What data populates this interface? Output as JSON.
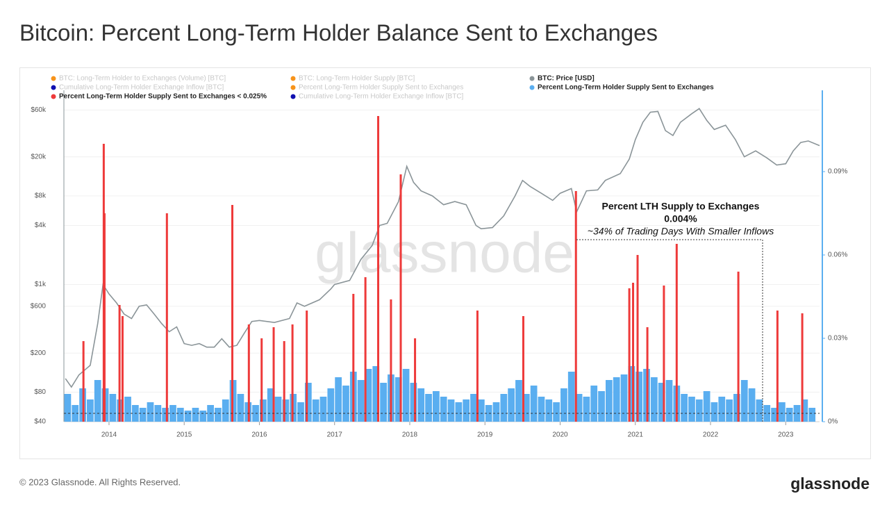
{
  "chart_data": {
    "type": "bar-line",
    "title": "Bitcoin: Percent Long-Term Holder Balance Sent to Exchanges",
    "watermark": "glassnode",
    "footer": "© 2023 Glassnode. All Rights Reserved.",
    "logo": "glassnode",
    "xlim": [
      2013.4,
      2023.45
    ],
    "xticks": [
      2014,
      2015,
      2016,
      2017,
      2018,
      2019,
      2020,
      2021,
      2022,
      2023
    ],
    "ylim": [
      40,
      100000
    ],
    "ylog": true,
    "yticks": [
      {
        "value": 40,
        "label": "$40"
      },
      {
        "value": 80,
        "label": "$80"
      },
      {
        "value": 200,
        "label": "$200"
      },
      {
        "value": 600,
        "label": "$600"
      },
      {
        "value": 1000,
        "label": "$1k"
      },
      {
        "value": 4000,
        "label": "$4k"
      },
      {
        "value": 8000,
        "label": "$8k"
      },
      {
        "value": 20000,
        "label": "$20k"
      },
      {
        "value": 60000,
        "label": "$60k"
      }
    ],
    "y2lim": [
      0,
      0.12
    ],
    "y2ticks": [
      {
        "value": 0,
        "label": "0%"
      },
      {
        "value": 0.03,
        "label": "0.03%"
      },
      {
        "value": 0.06,
        "label": "0.06%"
      },
      {
        "value": 0.09,
        "label": "0.09%"
      }
    ],
    "grid": true,
    "annotation": {
      "title": "Percent LTH Supply to Exchanges",
      "value": "0.004%",
      "note": "~34% of Trading Days With Smaller Inflows"
    },
    "other_legend_entries": [
      {
        "name": "BTC: Long-Term Holder to Exchanges (Volume) [BTC]",
        "color": "#f7931a"
      },
      {
        "name": "BTC: Long-Term Holder Supply [BTC]",
        "color": "#f7931a"
      },
      {
        "name": "Cumulative Long-Term Holder Exchange Inflow [BTC]",
        "color": "#1010b0"
      },
      {
        "name": "Percent Long-Term Holder Supply Sent to Exchanges",
        "color": "#f7931a"
      },
      {
        "name": "Cumulative Long-Term Holder Exchange Inflow [BTC]",
        "color": "#1010b0"
      }
    ],
    "series": [
      {
        "name": "Percent Long-Term Holder Supply Sent to Exchanges",
        "color": "#5aaef0",
        "kind": "bar",
        "axis": "y2",
        "x": [
          2013.45,
          2013.55,
          2013.65,
          2013.75,
          2013.85,
          2013.95,
          2014.05,
          2014.15,
          2014.25,
          2014.35,
          2014.45,
          2014.55,
          2014.65,
          2014.75,
          2014.85,
          2014.95,
          2015.05,
          2015.15,
          2015.25,
          2015.35,
          2015.45,
          2015.55,
          2015.65,
          2015.75,
          2015.85,
          2015.95,
          2016.05,
          2016.15,
          2016.25,
          2016.35,
          2016.45,
          2016.55,
          2016.65,
          2016.75,
          2016.85,
          2016.95,
          2017.05,
          2017.15,
          2017.25,
          2017.35,
          2017.45,
          2017.55,
          2017.65,
          2017.75,
          2017.85,
          2017.95,
          2018.05,
          2018.15,
          2018.25,
          2018.35,
          2018.45,
          2018.55,
          2018.65,
          2018.75,
          2018.85,
          2018.95,
          2019.05,
          2019.15,
          2019.25,
          2019.35,
          2019.45,
          2019.55,
          2019.65,
          2019.75,
          2019.85,
          2019.95,
          2020.05,
          2020.15,
          2020.25,
          2020.35,
          2020.45,
          2020.55,
          2020.65,
          2020.75,
          2020.85,
          2020.95,
          2021.05,
          2021.15,
          2021.25,
          2021.35,
          2021.45,
          2021.55,
          2021.65,
          2021.75,
          2021.85,
          2021.95,
          2022.05,
          2022.15,
          2022.25,
          2022.35,
          2022.45,
          2022.55,
          2022.65,
          2022.75,
          2022.85,
          2022.95,
          2023.05,
          2023.15,
          2023.25,
          2023.35
        ],
        "values": [
          0.01,
          0.006,
          0.012,
          0.008,
          0.015,
          0.012,
          0.01,
          0.008,
          0.009,
          0.006,
          0.005,
          0.007,
          0.006,
          0.005,
          0.006,
          0.005,
          0.004,
          0.005,
          0.004,
          0.006,
          0.005,
          0.008,
          0.015,
          0.01,
          0.007,
          0.006,
          0.008,
          0.012,
          0.009,
          0.008,
          0.01,
          0.007,
          0.014,
          0.008,
          0.009,
          0.012,
          0.016,
          0.013,
          0.018,
          0.015,
          0.019,
          0.02,
          0.014,
          0.017,
          0.016,
          0.019,
          0.014,
          0.012,
          0.01,
          0.011,
          0.009,
          0.008,
          0.007,
          0.008,
          0.01,
          0.008,
          0.006,
          0.007,
          0.01,
          0.012,
          0.015,
          0.01,
          0.013,
          0.009,
          0.008,
          0.007,
          0.012,
          0.018,
          0.01,
          0.009,
          0.013,
          0.011,
          0.015,
          0.016,
          0.017,
          0.02,
          0.018,
          0.019,
          0.016,
          0.014,
          0.015,
          0.013,
          0.01,
          0.009,
          0.008,
          0.011,
          0.007,
          0.009,
          0.008,
          0.01,
          0.015,
          0.012,
          0.008,
          0.006,
          0.005,
          0.007,
          0.005,
          0.006,
          0.008,
          0.005
        ]
      },
      {
        "name": "Percent Long-Term Holder Supply Sent to Exchanges < 0.025%",
        "color": "#ee3a3a",
        "kind": "spike",
        "axis": "y2",
        "x": [
          2013.66,
          2013.93,
          2013.94,
          2014.14,
          2014.18,
          2014.77,
          2015.64,
          2015.86,
          2016.03,
          2016.19,
          2016.33,
          2016.44,
          2016.63,
          2017.25,
          2017.41,
          2017.58,
          2017.75,
          2017.88,
          2018.07,
          2018.9,
          2019.51,
          2020.21,
          2020.92,
          2020.97,
          2021.03,
          2021.16,
          2021.38,
          2021.55,
          2022.37,
          2022.89,
          2023.22
        ],
        "values": [
          0.029,
          0.1,
          0.075,
          0.042,
          0.038,
          0.075,
          0.078,
          0.035,
          0.03,
          0.034,
          0.029,
          0.035,
          0.04,
          0.046,
          0.052,
          0.11,
          0.044,
          0.089,
          0.03,
          0.04,
          0.038,
          0.083,
          0.048,
          0.05,
          0.06,
          0.034,
          0.049,
          0.064,
          0.054,
          0.04,
          0.039
        ]
      },
      {
        "name": "BTC: Price [USD]",
        "color": "#8a9498",
        "kind": "line",
        "axis": "y",
        "x": [
          2013.42,
          2013.5,
          2013.6,
          2013.75,
          2013.85,
          2013.92,
          2014.0,
          2014.1,
          2014.2,
          2014.3,
          2014.4,
          2014.5,
          2014.6,
          2014.7,
          2014.8,
          2014.9,
          2015.0,
          2015.1,
          2015.2,
          2015.3,
          2015.4,
          2015.5,
          2015.6,
          2015.7,
          2015.8,
          2015.9,
          2016.0,
          2016.2,
          2016.4,
          2016.5,
          2016.6,
          2016.8,
          2016.95,
          2017.0,
          2017.2,
          2017.35,
          2017.5,
          2017.6,
          2017.7,
          2017.85,
          2017.96,
          2018.05,
          2018.15,
          2018.3,
          2018.45,
          2018.6,
          2018.75,
          2018.88,
          2018.95,
          2019.1,
          2019.25,
          2019.4,
          2019.5,
          2019.6,
          2019.75,
          2019.9,
          2020.0,
          2020.15,
          2020.22,
          2020.35,
          2020.5,
          2020.6,
          2020.8,
          2020.92,
          2021.0,
          2021.1,
          2021.2,
          2021.3,
          2021.4,
          2021.5,
          2021.6,
          2021.75,
          2021.85,
          2021.95,
          2022.05,
          2022.2,
          2022.33,
          2022.45,
          2022.6,
          2022.75,
          2022.88,
          2023.0,
          2023.1,
          2023.2,
          2023.3,
          2023.45
        ],
        "values": [
          110,
          90,
          120,
          150,
          400,
          1000,
          800,
          650,
          500,
          450,
          600,
          620,
          500,
          400,
          330,
          370,
          250,
          240,
          250,
          230,
          230,
          280,
          230,
          240,
          320,
          420,
          430,
          410,
          450,
          650,
          600,
          700,
          900,
          1000,
          1100,
          1800,
          2500,
          4000,
          4200,
          7000,
          16000,
          11000,
          9000,
          8000,
          6500,
          7000,
          6500,
          4000,
          3700,
          3800,
          5000,
          8000,
          11500,
          10000,
          8500,
          7200,
          8500,
          9500,
          5500,
          9000,
          9200,
          11500,
          13500,
          19000,
          30000,
          45000,
          57000,
          58000,
          37000,
          33000,
          45000,
          55000,
          62000,
          47000,
          38000,
          42000,
          30000,
          20000,
          23000,
          19500,
          16500,
          17000,
          23000,
          28000,
          29000,
          26000
        ]
      }
    ]
  }
}
